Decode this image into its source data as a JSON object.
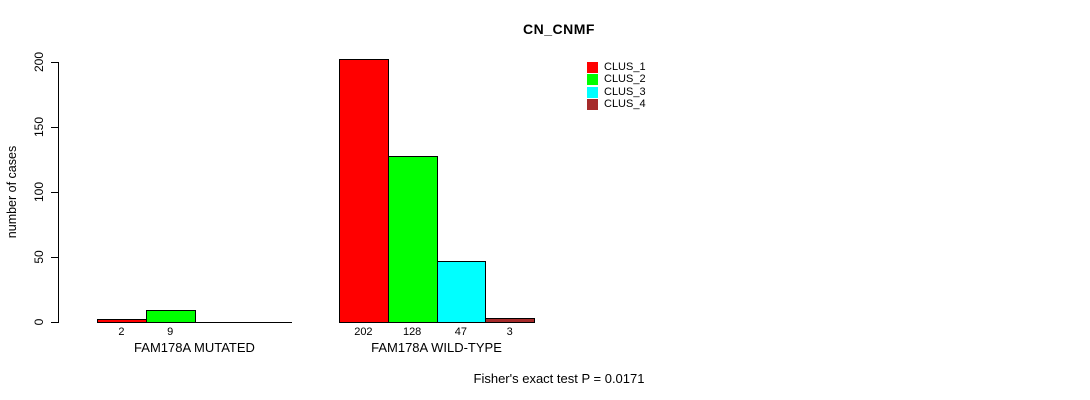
{
  "title": "CN_CNMF",
  "chart_data": {
    "type": "bar",
    "title": "CN_CNMF",
    "xlabel": "",
    "ylabel": "number of cases",
    "categories": [
      "FAM178A MUTATED",
      "FAM178A WILD-TYPE"
    ],
    "series": [
      {
        "name": "CLUS_1",
        "color": "#ff0000",
        "values": [
          2,
          202
        ]
      },
      {
        "name": "CLUS_2",
        "color": "#00ff00",
        "values": [
          9,
          128
        ]
      },
      {
        "name": "CLUS_3",
        "color": "#00ffff",
        "values": [
          0,
          47
        ]
      },
      {
        "name": "CLUS_4",
        "color": "#a52a2a",
        "values": [
          0,
          3
        ]
      }
    ],
    "bar_value_labels_shown": true,
    "zero_values_unlabeled": true,
    "yticks": [
      0,
      50,
      100,
      150,
      200
    ],
    "ylim": [
      0,
      210
    ],
    "grid": false,
    "legend_position": "top-right",
    "legend_entries": [
      {
        "label": "CLUS_1",
        "color": "#ff0000"
      },
      {
        "label": "CLUS_2",
        "color": "#00ff00"
      },
      {
        "label": "CLUS_3",
        "color": "#00ffff"
      },
      {
        "label": "CLUS_4",
        "color": "#a52a2a"
      }
    ],
    "annotation": "Fisher's exact test P = 0.0171"
  }
}
